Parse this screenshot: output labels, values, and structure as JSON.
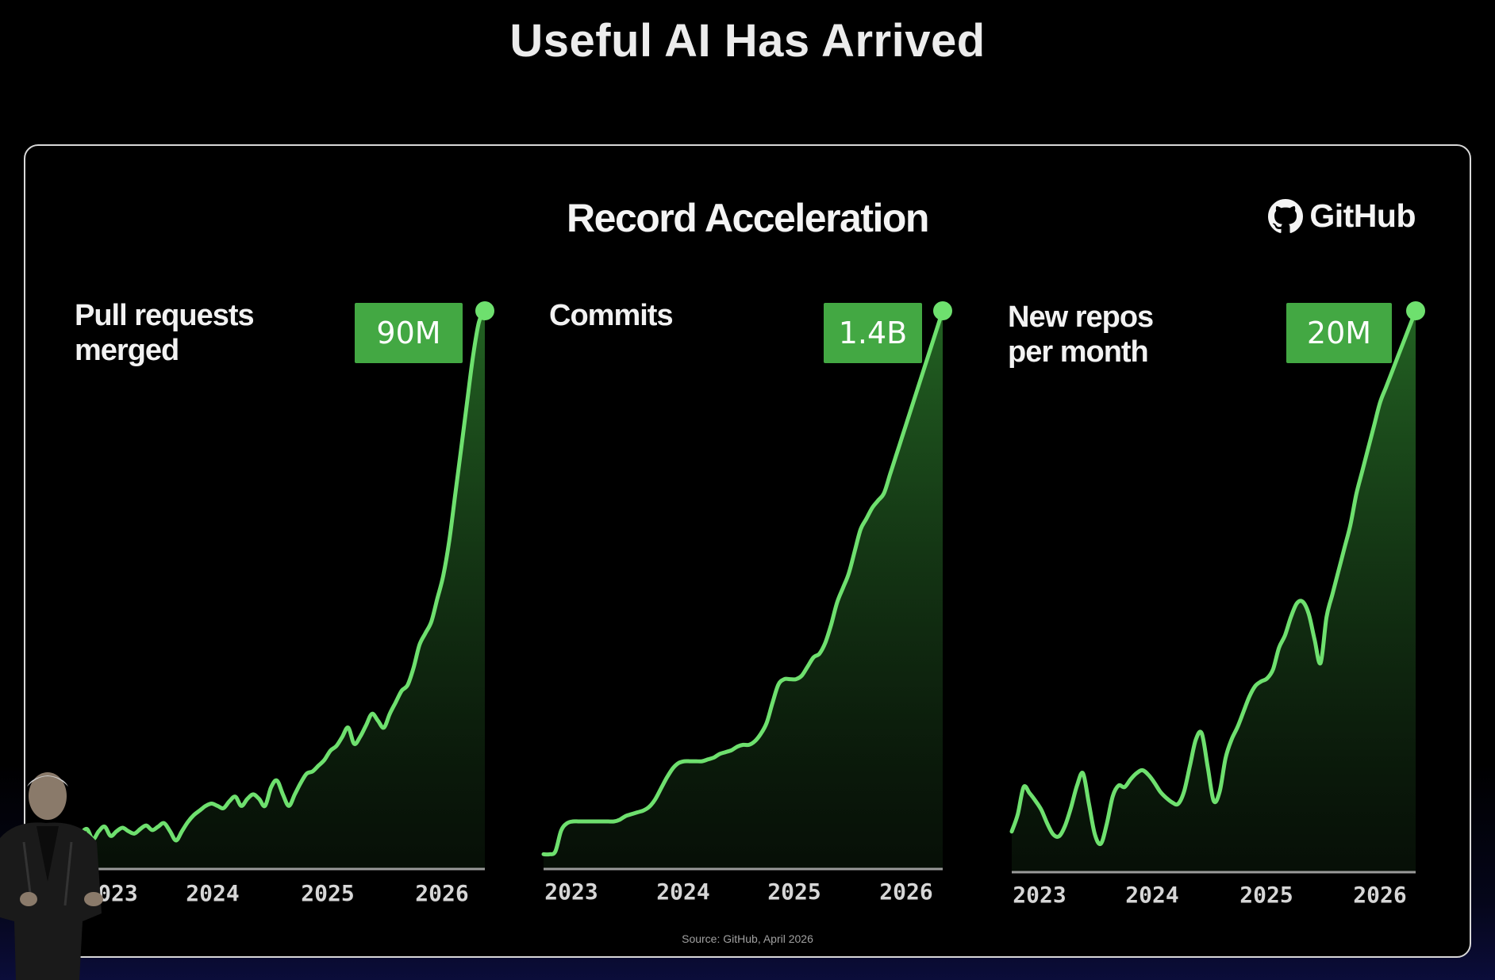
{
  "title": "Useful AI Has Arrived",
  "subtitle": "Record Acceleration",
  "brand": "GitHub",
  "source": "Source: GitHub, April 2026",
  "colors": {
    "line": "#6ee06e",
    "badge": "#43a843",
    "background": "#000000"
  },
  "chart_data": [
    {
      "type": "area",
      "label": "Pull requests merged",
      "badge": "90M",
      "tick_labels": [
        "2023",
        "2024",
        "2025",
        "2026"
      ],
      "x": [
        2022.85,
        2022.9,
        2022.95,
        2023.0,
        2023.05,
        2023.1,
        2023.15,
        2023.2,
        2023.25,
        2023.3,
        2023.35,
        2023.4,
        2023.45,
        2023.5,
        2023.55,
        2023.6,
        2023.65,
        2023.7,
        2023.75,
        2023.8,
        2023.85,
        2023.9,
        2023.95,
        2024.0,
        2024.05,
        2024.1,
        2024.15,
        2024.2,
        2024.25,
        2024.3,
        2024.35,
        2024.4,
        2024.45,
        2024.5,
        2024.55,
        2024.6,
        2024.65,
        2024.7,
        2024.75,
        2024.8,
        2024.85,
        2024.9,
        2024.95,
        2025.0,
        2025.05,
        2025.1,
        2025.15,
        2025.2,
        2025.25,
        2025.3,
        2025.35,
        2025.4,
        2025.45,
        2025.5,
        2025.55,
        2025.6,
        2025.65,
        2025.7,
        2025.75,
        2025.8,
        2025.85,
        2025.9,
        2025.95,
        2026.0,
        2026.05,
        2026.1,
        2026.15,
        2026.2,
        2026.25
      ],
      "y": [
        6,
        10,
        1,
        8,
        12,
        4,
        8,
        11,
        8,
        6,
        10,
        13,
        9,
        12,
        15,
        8,
        0,
        8,
        16,
        22,
        26,
        30,
        32,
        30,
        28,
        34,
        38,
        30,
        36,
        40,
        36,
        30,
        46,
        52,
        40,
        30,
        40,
        50,
        58,
        60,
        65,
        70,
        78,
        82,
        90,
        98,
        84,
        90,
        100,
        110,
        104,
        98,
        110,
        120,
        130,
        135,
        150,
        170,
        180,
        190,
        210,
        230,
        260,
        300,
        340,
        380,
        420,
        450,
        460
      ],
      "ylim": [
        0,
        460
      ]
    },
    {
      "type": "area",
      "label": "Commits",
      "badge": "1.4B",
      "tick_labels": [
        "2023",
        "2024",
        "2025",
        "2026"
      ],
      "x": [
        2022.85,
        2022.9,
        2022.95,
        2023.0,
        2023.05,
        2023.1,
        2023.15,
        2023.2,
        2023.25,
        2023.3,
        2023.35,
        2023.4,
        2023.45,
        2023.5,
        2023.55,
        2023.6,
        2023.65,
        2023.7,
        2023.75,
        2023.8,
        2023.85,
        2023.9,
        2023.95,
        2024.0,
        2024.05,
        2024.1,
        2024.15,
        2024.2,
        2024.25,
        2024.3,
        2024.35,
        2024.4,
        2024.45,
        2024.5,
        2024.55,
        2024.6,
        2024.65,
        2024.7,
        2024.75,
        2024.8,
        2024.85,
        2024.9,
        2024.95,
        2025.0,
        2025.05,
        2025.1,
        2025.15,
        2025.2,
        2025.25,
        2025.3,
        2025.35,
        2025.4,
        2025.45,
        2025.5,
        2025.55,
        2025.6,
        2025.65,
        2025.7,
        2025.75,
        2025.8,
        2025.85,
        2025.9,
        2025.95,
        2026.0,
        2026.05,
        2026.1,
        2026.15,
        2026.2,
        2026.25
      ],
      "y": [
        4,
        4,
        7,
        30,
        38,
        40,
        40,
        40,
        40,
        40,
        40,
        40,
        40,
        42,
        46,
        48,
        50,
        52,
        56,
        64,
        76,
        88,
        98,
        104,
        106,
        106,
        106,
        106,
        108,
        110,
        114,
        116,
        118,
        122,
        124,
        124,
        128,
        136,
        148,
        170,
        190,
        196,
        196,
        196,
        200,
        210,
        220,
        224,
        236,
        256,
        280,
        296,
        312,
        336,
        360,
        372,
        384,
        392,
        400,
        420,
        440,
        460,
        480,
        500,
        520,
        540,
        560,
        580,
        600
      ],
      "ylim": [
        0,
        600
      ]
    },
    {
      "type": "area",
      "label": "New repos\nper month",
      "badge": "20M",
      "tick_labels": [
        "2023",
        "2024",
        "2025",
        "2026"
      ],
      "x": [
        2022.85,
        2022.9,
        2022.95,
        2023.0,
        2023.05,
        2023.1,
        2023.15,
        2023.2,
        2023.25,
        2023.3,
        2023.35,
        2023.4,
        2023.45,
        2023.5,
        2023.55,
        2023.6,
        2023.65,
        2023.7,
        2023.75,
        2023.8,
        2023.85,
        2023.9,
        2023.95,
        2024.0,
        2024.05,
        2024.1,
        2024.15,
        2024.2,
        2024.25,
        2024.3,
        2024.35,
        2024.4,
        2024.45,
        2024.5,
        2024.55,
        2024.6,
        2024.65,
        2024.7,
        2024.75,
        2024.8,
        2024.85,
        2024.9,
        2024.95,
        2025.0,
        2025.05,
        2025.1,
        2025.15,
        2025.2,
        2025.25,
        2025.3,
        2025.35,
        2025.4,
        2025.45,
        2025.5,
        2025.55,
        2025.6,
        2025.65,
        2025.7,
        2025.75,
        2025.8,
        2025.85,
        2025.9,
        2025.95,
        2026.0,
        2026.05,
        2026.1,
        2026.15,
        2026.2,
        2026.25
      ],
      "y": [
        20,
        42,
        78,
        70,
        60,
        48,
        30,
        16,
        14,
        28,
        52,
        80,
        96,
        56,
        16,
        4,
        30,
        66,
        80,
        78,
        88,
        96,
        100,
        94,
        84,
        72,
        64,
        58,
        56,
        72,
        106,
        140,
        148,
        104,
        60,
        72,
        116,
        140,
        156,
        176,
        196,
        210,
        216,
        220,
        232,
        260,
        276,
        300,
        318,
        320,
        304,
        270,
        240,
        300,
        330,
        360,
        390,
        420,
        460,
        490,
        520,
        550,
        580,
        600,
        620,
        640,
        660,
        680,
        700
      ],
      "ylim": [
        0,
        700
      ]
    }
  ]
}
